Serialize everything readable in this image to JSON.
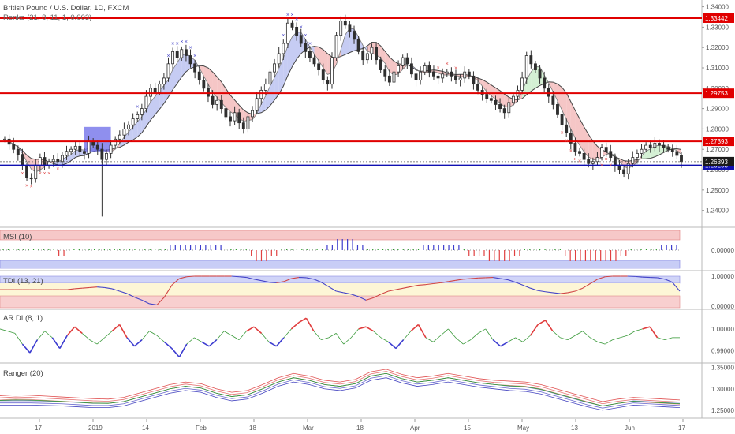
{
  "header": {
    "title": "British Pound / U.S. Dollar, 1D, FXCM",
    "indicator": "Renko (21, 8, 11, 1, 0.003)"
  },
  "colors": {
    "up": "#2f2f2f",
    "down": "#2f2f2f",
    "resistance": "#e00000",
    "support": "#1010b0",
    "cloud_up": "#b8bff0",
    "cloud_down": "#f3b8b8",
    "cloud_green": "#c9ecc9",
    "buy_marker": "#4a4ac8",
    "sell_marker": "#e05050"
  },
  "chart_data": [
    {
      "type": "candlestick",
      "title": "British Pound / U.S. Dollar, 1D, FXCM",
      "x_ticks": [
        "17",
        "2019",
        "14",
        "Feb",
        "18",
        "Mar",
        "18",
        "Apr",
        "15",
        "May",
        "13",
        "Jun",
        "17"
      ],
      "y_ticks": [
        "1.34000",
        "1.33000",
        "1.32000",
        "1.31000",
        "1.30000",
        "1.29000",
        "1.28000",
        "1.27000",
        "1.26000",
        "1.25000",
        "1.24000"
      ],
      "ylim": [
        1.2325,
        1.341
      ],
      "horizontal_levels": [
        {
          "value": 1.33442,
          "label": "1.33442",
          "color": "#e00000"
        },
        {
          "value": 1.29753,
          "label": "1.29753",
          "color": "#e00000"
        },
        {
          "value": 1.27393,
          "label": "1.27393",
          "color": "#e00000"
        },
        {
          "value": 1.26208,
          "label": "1.26208",
          "color": "#1010b0"
        }
      ],
      "last_price": {
        "value": 1.26393,
        "label": "1.26393"
      },
      "closes": [
        1.275,
        1.2725,
        1.27,
        1.2675,
        1.262,
        1.256,
        1.2555,
        1.262,
        1.266,
        1.262,
        1.264,
        1.265,
        1.264,
        1.267,
        1.269,
        1.27,
        1.2715,
        1.269,
        1.268,
        1.274,
        1.272,
        1.27,
        1.265,
        1.268,
        1.272,
        1.275,
        1.277,
        1.28,
        1.282,
        1.285,
        1.287,
        1.29,
        1.296,
        1.3,
        1.298,
        1.302,
        1.305,
        1.312,
        1.318,
        1.315,
        1.319,
        1.316,
        1.312,
        1.308,
        1.304,
        1.3,
        1.296,
        1.292,
        1.294,
        1.29,
        1.286,
        1.284,
        1.288,
        1.283,
        1.28,
        1.286,
        1.289,
        1.295,
        1.299,
        1.302,
        1.308,
        1.312,
        1.317,
        1.322,
        1.332,
        1.33,
        1.326,
        1.322,
        1.318,
        1.315,
        1.312,
        1.309,
        1.304,
        1.302,
        1.315,
        1.326,
        1.333,
        1.331,
        1.328,
        1.324,
        1.318,
        1.314,
        1.317,
        1.32,
        1.314,
        1.309,
        1.306,
        1.303,
        1.308,
        1.311,
        1.315,
        1.312,
        1.307,
        1.304,
        1.308,
        1.311,
        1.308,
        1.306,
        1.305,
        1.307,
        1.308,
        1.306,
        1.304,
        1.305,
        1.308,
        1.306,
        1.302,
        1.299,
        1.297,
        1.295,
        1.294,
        1.292,
        1.29,
        1.288,
        1.293,
        1.296,
        1.299,
        1.305,
        1.316,
        1.312,
        1.309,
        1.305,
        1.3,
        1.296,
        1.292,
        1.287,
        1.282,
        1.278,
        1.273,
        1.269,
        1.268,
        1.265,
        1.263,
        1.264,
        1.266,
        1.271,
        1.269,
        1.266,
        1.262,
        1.26,
        1.258,
        1.263,
        1.266,
        1.268,
        1.27,
        1.272,
        1.271,
        1.273,
        1.272,
        1.271,
        1.27,
        1.269,
        1.267,
        1.264
      ]
    },
    {
      "type": "bar",
      "title": "MSI (10)",
      "y_ticks": [
        "0.00000"
      ],
      "values": [
        0,
        0,
        0,
        0,
        0,
        0,
        0,
        0,
        0,
        0,
        0,
        -1,
        -1,
        0,
        0,
        0,
        0,
        0,
        0,
        0,
        0,
        0,
        0,
        0,
        0,
        0,
        0,
        0,
        0,
        0,
        0,
        0,
        0,
        1,
        1,
        1,
        1,
        1,
        1,
        1,
        1,
        1,
        1,
        1,
        0,
        0,
        0,
        0,
        0,
        -1,
        -2,
        -2,
        -2,
        -1,
        -1,
        0,
        0,
        0,
        0,
        0,
        0,
        0,
        0,
        0,
        1,
        1,
        2,
        2,
        2,
        2,
        1,
        1,
        0,
        0,
        0,
        0,
        0,
        0,
        0,
        0,
        0,
        0,
        0,
        1,
        1,
        1,
        1,
        1,
        1,
        1,
        1,
        0,
        -1,
        -1,
        -1,
        -1,
        -2,
        -2,
        -2,
        -2,
        -2,
        -1,
        -1,
        0,
        0,
        0,
        0,
        0,
        0,
        0,
        0,
        -1,
        -2,
        -2,
        -2,
        -2,
        -2,
        -2,
        -2,
        -2,
        -2,
        -2,
        -1,
        -1,
        0,
        0,
        0,
        0,
        0,
        0,
        1,
        1,
        1,
        1
      ]
    },
    {
      "type": "line",
      "title": "TDI (13, 21)",
      "y_ticks": [
        "1.00000",
        "0.00000"
      ],
      "values": [
        0.55,
        0.55,
        0.55,
        0.55,
        0.55,
        0.55,
        0.55,
        0.55,
        0.55,
        0.55,
        0.58,
        0.6,
        0.62,
        0.64,
        0.62,
        0.58,
        0.5,
        0.42,
        0.3,
        0.2,
        0.08,
        0.04,
        0.3,
        0.7,
        0.92,
        0.98,
        1.0,
        1.0,
        1.0,
        1.0,
        1.0,
        1.0,
        0.98,
        0.96,
        0.9,
        0.85,
        0.8,
        0.78,
        0.82,
        0.92,
        0.96,
        0.95,
        0.9,
        0.8,
        0.65,
        0.5,
        0.45,
        0.4,
        0.32,
        0.2,
        0.28,
        0.4,
        0.5,
        0.55,
        0.6,
        0.65,
        0.7,
        0.72,
        0.75,
        0.78,
        0.82,
        0.86,
        0.9,
        0.92,
        0.94,
        0.95,
        0.96,
        0.92,
        0.88,
        0.8,
        0.7,
        0.6,
        0.52,
        0.48,
        0.45,
        0.42,
        0.45,
        0.5,
        0.6,
        0.75,
        0.9,
        0.98,
        1.0,
        1.0,
        1.0,
        0.99,
        0.97,
        0.96,
        0.95,
        0.9,
        0.8,
        0.5
      ]
    },
    {
      "type": "line",
      "title": "AR DI (8, 1)",
      "y_ticks": [
        "1.00000",
        "0.99000"
      ],
      "values": [
        1.0,
        0.999,
        0.998,
        0.993,
        0.989,
        0.995,
        0.999,
        0.996,
        0.991,
        0.997,
        1.001,
        0.998,
        0.995,
        0.993,
        0.996,
        0.999,
        1.002,
        0.996,
        0.992,
        0.995,
        0.999,
        0.997,
        0.994,
        0.991,
        0.987,
        0.993,
        0.996,
        0.994,
        0.992,
        0.995,
        0.999,
        0.997,
        0.995,
        0.999,
        1.001,
        0.998,
        0.994,
        0.992,
        0.996,
        1.0,
        1.003,
        1.005,
        0.999,
        0.995,
        0.996,
        0.998,
        0.993,
        0.996,
        1.0,
        1.001,
        0.999,
        0.996,
        0.994,
        0.991,
        0.995,
        0.999,
        1.002,
        0.996,
        0.994,
        0.997,
        1.0,
        0.996,
        0.993,
        0.995,
        0.998,
        1.0,
        0.995,
        0.992,
        0.994,
        0.996,
        0.994,
        0.997,
        1.002,
        1.004,
        0.999,
        0.996,
        0.995,
        0.997,
        0.999,
        0.996,
        0.994,
        0.993,
        0.995,
        0.996,
        0.997,
        0.999,
        1.0,
        1.001,
        0.996,
        0.995,
        0.996,
        0.996
      ]
    },
    {
      "type": "line",
      "title": "Ranger (20)",
      "y_ticks": [
        "1.35000",
        "1.30000",
        "1.25000"
      ],
      "series": [
        {
          "color": "#e05050",
          "values": [
            1.284,
            1.286,
            1.285,
            1.283,
            1.281,
            1.279,
            1.277,
            1.276,
            1.28,
            1.29,
            1.3,
            1.31,
            1.316,
            1.312,
            1.3,
            1.292,
            1.296,
            1.31,
            1.326,
            1.336,
            1.33,
            1.32,
            1.316,
            1.322,
            1.34,
            1.346,
            1.334,
            1.326,
            1.33,
            1.336,
            1.33,
            1.324,
            1.32,
            1.318,
            1.316,
            1.31,
            1.3,
            1.29,
            1.28,
            1.27,
            1.276,
            1.28,
            1.278,
            1.276,
            1.274
          ]
        },
        {
          "color": "#4444c0",
          "values": [
            1.262,
            1.262,
            1.262,
            1.261,
            1.26,
            1.258,
            1.256,
            1.256,
            1.26,
            1.27,
            1.28,
            1.29,
            1.296,
            1.292,
            1.28,
            1.272,
            1.276,
            1.29,
            1.306,
            1.316,
            1.31,
            1.3,
            1.296,
            1.302,
            1.32,
            1.326,
            1.314,
            1.306,
            1.31,
            1.316,
            1.31,
            1.304,
            1.3,
            1.296,
            1.294,
            1.288,
            1.278,
            1.268,
            1.258,
            1.25,
            1.256,
            1.262,
            1.26,
            1.258,
            1.256
          ]
        }
      ]
    }
  ]
}
